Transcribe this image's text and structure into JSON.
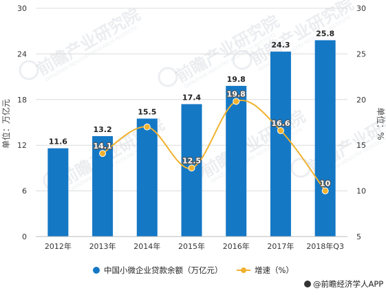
{
  "chart_data": {
    "type": "bar",
    "categories": [
      "2012年",
      "2013年",
      "2014年",
      "2015年",
      "2016年",
      "2017年",
      "2018年Q3"
    ],
    "series": [
      {
        "name": "中国小微企业贷款余额（万亿元）",
        "type": "bar",
        "axis": "left",
        "values": [
          11.6,
          13.2,
          15.5,
          17.4,
          19.8,
          24.3,
          25.8
        ],
        "color": "#1478c5"
      },
      {
        "name": "增速（%）",
        "type": "line",
        "axis": "right",
        "values": [
          null,
          14.1,
          17.0,
          12.5,
          19.8,
          16.6,
          10.0
        ],
        "labels": [
          "",
          "14.1",
          "",
          "12.5",
          "19.8",
          "16.6",
          "10"
        ],
        "color": "#f0b12d"
      }
    ],
    "bar_labels": [
      "11.6",
      "13.2",
      "15.5",
      "17.4",
      "19.8",
      "24.3",
      "25.8"
    ],
    "left_axis": {
      "label": "单位：万亿元",
      "ylim": [
        0,
        30
      ],
      "ticks": [
        "0",
        "6",
        "12",
        "18",
        "24",
        "30"
      ]
    },
    "right_axis": {
      "label": "单位：%",
      "ylim": [
        5,
        30
      ],
      "ticks": [
        "5",
        "10",
        "15",
        "20",
        "25",
        "30"
      ]
    },
    "grid": true,
    "legend_position": "bottom"
  },
  "legend": {
    "bar_label": "中国小微企业贷款余额（万亿元）",
    "line_label": "增速（%）"
  },
  "watermark": {
    "text": "前瞻产业研究院",
    "sub": "QIANZHAN INDUSTRY RESEARCH INSTITUTE"
  },
  "source": "@前瞻经济学人APP"
}
